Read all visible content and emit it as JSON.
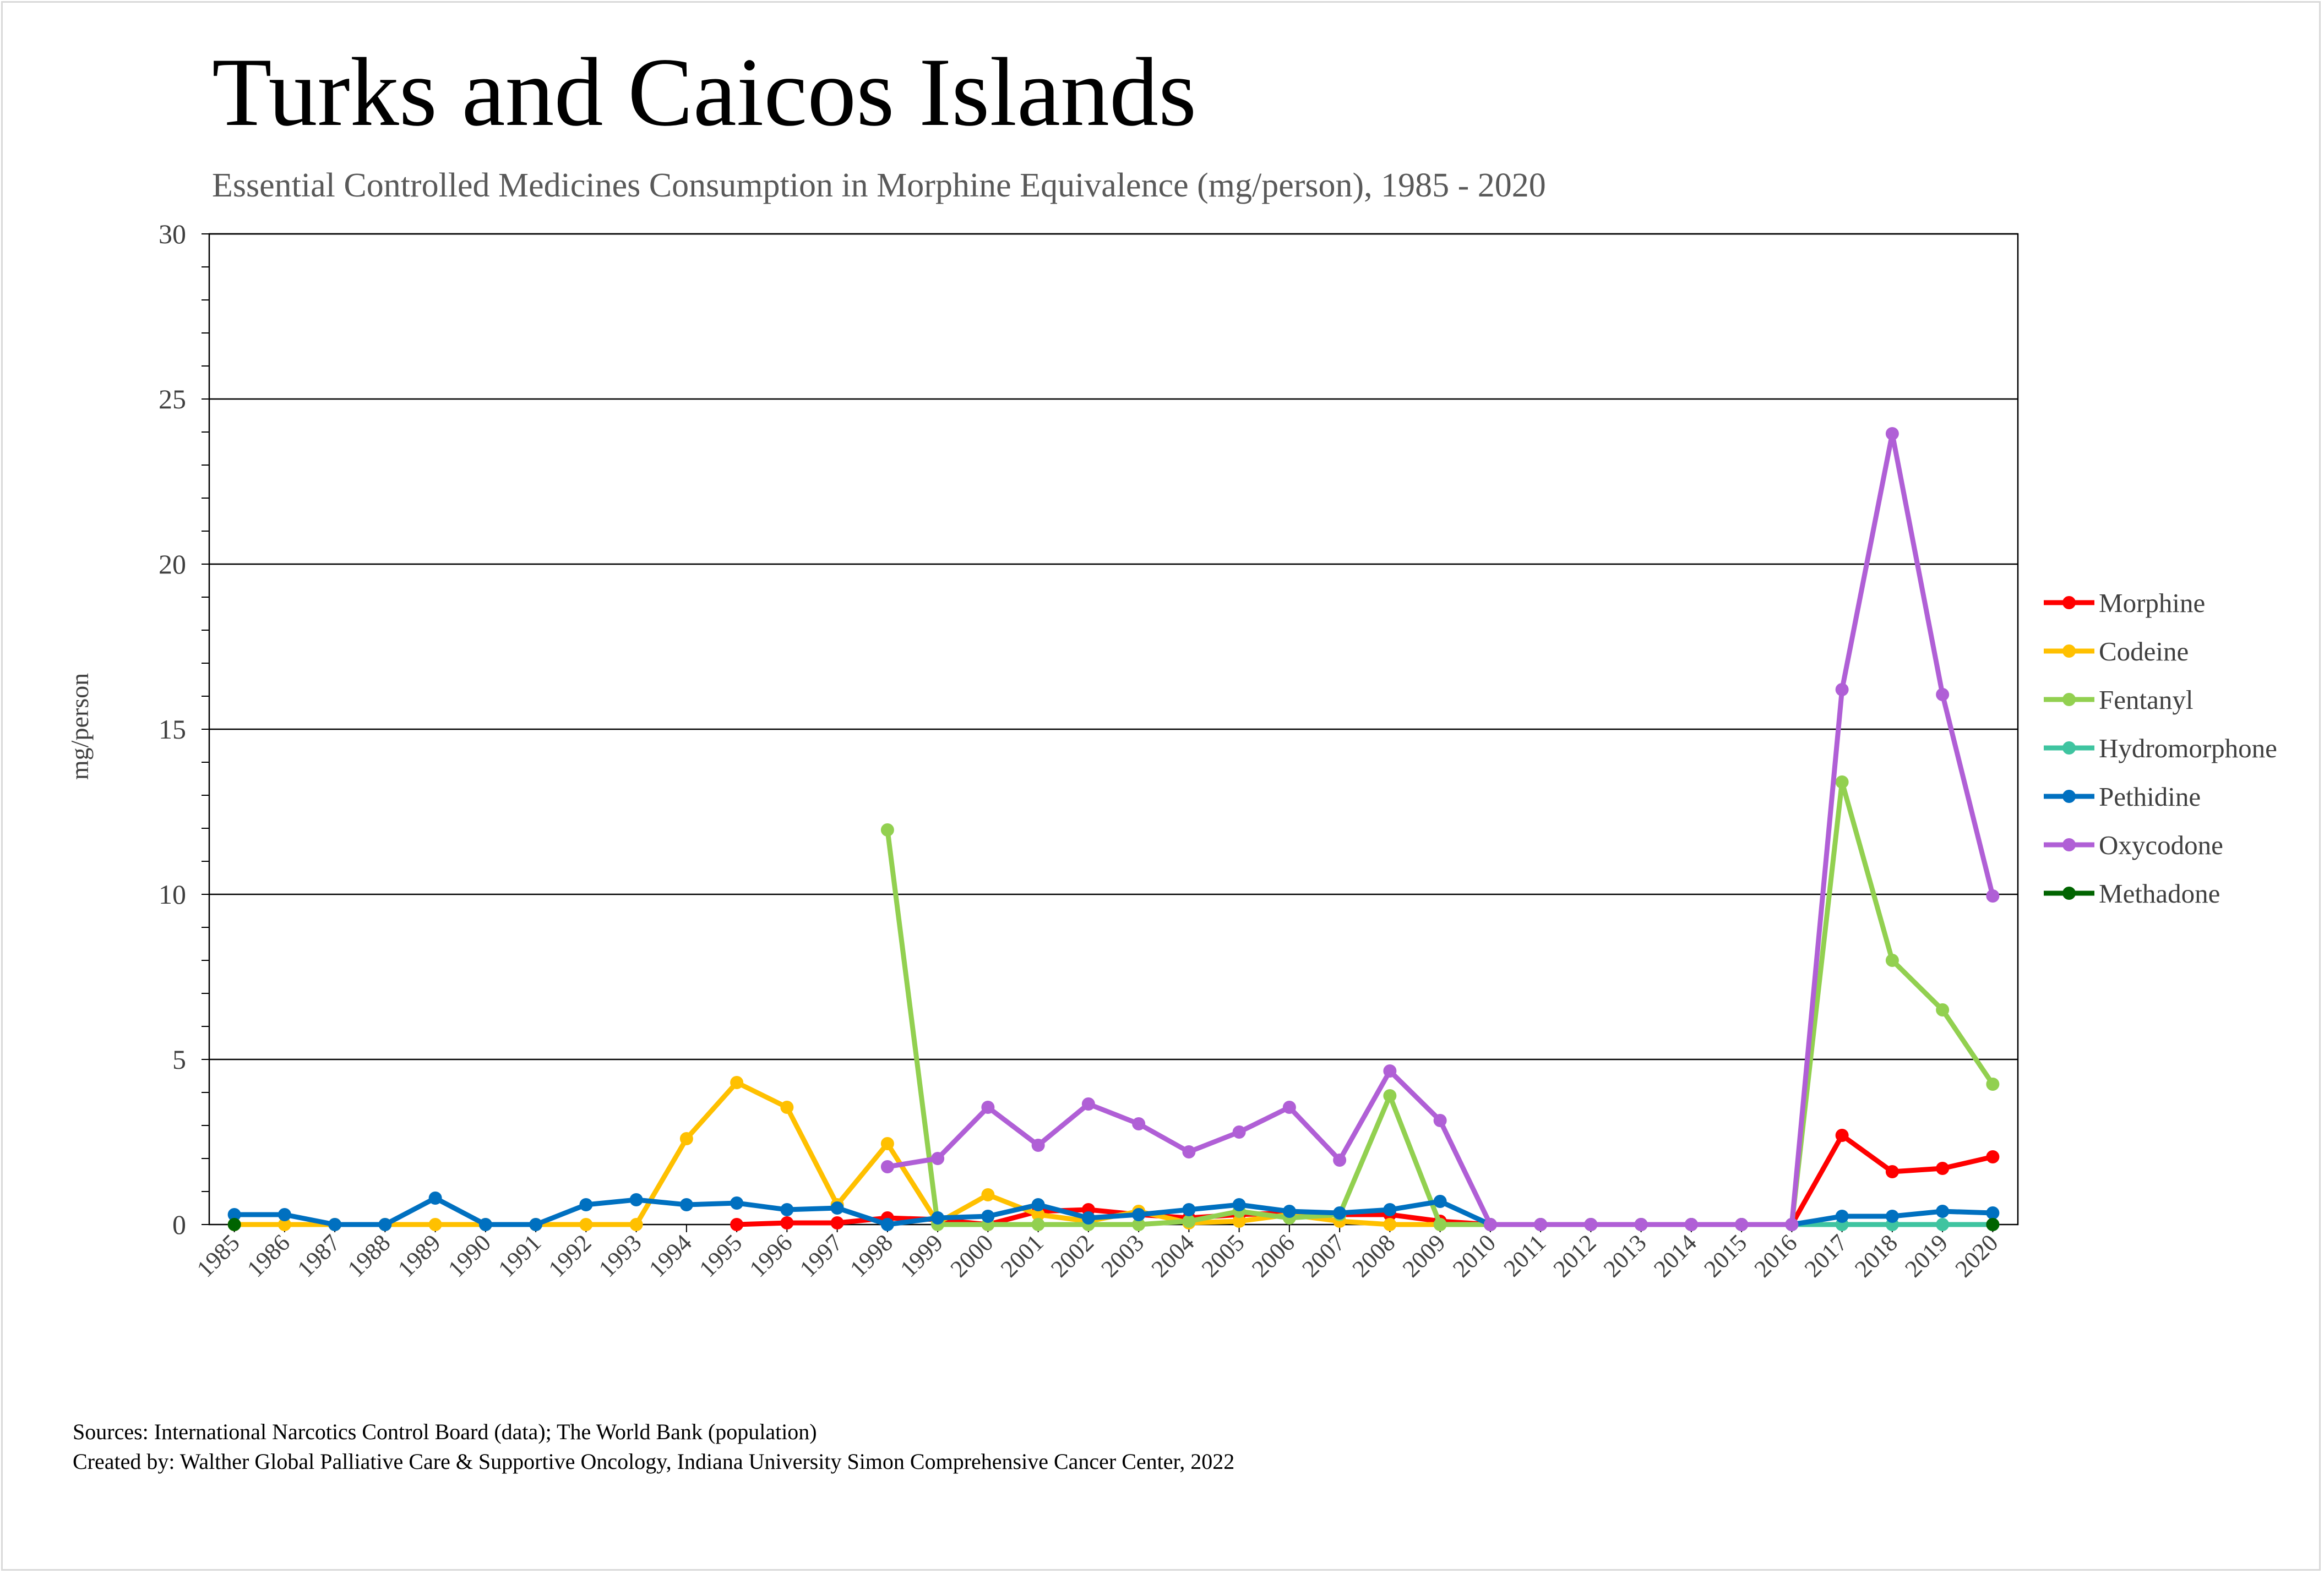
{
  "chart_data": {
    "type": "line",
    "title": "Turks and Caicos Islands",
    "subtitle": "Essential Controlled Medicines Consumption in Morphine Equivalence (mg/person), 1985 - 2020",
    "xlabel": "",
    "ylabel": "mg/person",
    "ylim": [
      0,
      30
    ],
    "yticks": [
      0,
      5,
      10,
      15,
      20,
      25,
      30
    ],
    "grid": true,
    "legend_position": "right",
    "x": [
      "1985",
      "1986",
      "1987",
      "1988",
      "1989",
      "1990",
      "1991",
      "1992",
      "1993",
      "1994",
      "1995",
      "1996",
      "1997",
      "1998",
      "1999",
      "2000",
      "2001",
      "2002",
      "2003",
      "2004",
      "2005",
      "2006",
      "2007",
      "2008",
      "2009",
      "2010",
      "2011",
      "2012",
      "2013",
      "2014",
      "2015",
      "2016",
      "2017",
      "2018",
      "2019",
      "2020"
    ],
    "series": [
      {
        "name": "Morphine",
        "color": "#ff0000",
        "values": [
          null,
          null,
          null,
          null,
          null,
          null,
          null,
          null,
          null,
          null,
          0.0,
          0.05,
          0.05,
          0.2,
          0.15,
          0.0,
          0.4,
          0.45,
          0.3,
          0.2,
          0.3,
          0.35,
          0.3,
          0.3,
          0.1,
          0.0,
          0.0,
          0.0,
          0.0,
          0.0,
          0.0,
          0.0,
          2.7,
          1.6,
          1.7,
          2.05
        ]
      },
      {
        "name": "Codeine",
        "color": "#ffc000",
        "values": [
          0,
          0,
          0,
          0,
          0,
          0,
          0,
          0,
          0,
          2.6,
          4.3,
          3.55,
          0.6,
          2.45,
          0.05,
          0.9,
          0.3,
          0.1,
          0.4,
          0.05,
          0.1,
          0.3,
          0.1,
          0.0,
          0.0,
          0.0,
          0.0,
          0.0,
          0.0,
          0.0,
          0.0,
          0.0,
          null,
          null,
          null,
          null
        ]
      },
      {
        "name": "Fentanyl",
        "color": "#92d050",
        "values": [
          null,
          null,
          null,
          null,
          null,
          null,
          null,
          null,
          null,
          null,
          null,
          null,
          null,
          11.95,
          0.0,
          0.0,
          0.0,
          0.0,
          0.0,
          0.1,
          0.4,
          0.2,
          0.3,
          3.9,
          0.0,
          0.0,
          0.0,
          0.0,
          0.0,
          0.0,
          0.0,
          0.0,
          13.4,
          8.0,
          6.5,
          4.25
        ]
      },
      {
        "name": "Hydromorphone",
        "color": "#3fc4a0",
        "values": [
          null,
          null,
          null,
          null,
          null,
          null,
          null,
          null,
          null,
          null,
          null,
          null,
          null,
          null,
          null,
          null,
          null,
          null,
          null,
          null,
          null,
          null,
          null,
          null,
          null,
          null,
          null,
          null,
          null,
          null,
          null,
          0.0,
          0.0,
          0.0,
          0.0,
          0.0
        ]
      },
      {
        "name": "Pethidine",
        "color": "#0070c0",
        "values": [
          0.3,
          0.3,
          0.0,
          0.0,
          0.8,
          0.0,
          0.0,
          0.6,
          0.75,
          0.6,
          0.65,
          0.45,
          0.5,
          0.0,
          0.2,
          0.25,
          0.6,
          0.2,
          0.3,
          0.45,
          0.6,
          0.4,
          0.35,
          0.45,
          0.7,
          0.0,
          0.0,
          0.0,
          0.0,
          0.0,
          0.0,
          0.0,
          0.25,
          0.25,
          0.4,
          0.35
        ]
      },
      {
        "name": "Oxycodone",
        "color": "#b05fd6",
        "values": [
          null,
          null,
          null,
          null,
          null,
          null,
          null,
          null,
          null,
          null,
          null,
          null,
          null,
          1.75,
          2.0,
          3.55,
          2.4,
          3.65,
          3.05,
          2.2,
          2.8,
          3.55,
          1.95,
          4.65,
          3.15,
          0.0,
          0.0,
          0.0,
          0.0,
          0.0,
          0.0,
          0.0,
          16.2,
          23.95,
          16.05,
          9.95
        ]
      },
      {
        "name": "Methadone",
        "color": "#006400",
        "values": [
          0.0,
          null,
          null,
          null,
          null,
          null,
          null,
          null,
          null,
          null,
          null,
          null,
          null,
          null,
          null,
          null,
          null,
          null,
          null,
          null,
          null,
          null,
          null,
          null,
          null,
          null,
          null,
          null,
          null,
          null,
          null,
          null,
          null,
          null,
          null,
          0.0
        ]
      }
    ]
  },
  "footer": {
    "sources": "Sources: International Narcotics Control Board (data); The World Bank (population)",
    "created_by": "Created by: Walther Global Palliative Care & Supportive Oncology, Indiana University Simon Comprehensive Cancer Center, 2022"
  }
}
